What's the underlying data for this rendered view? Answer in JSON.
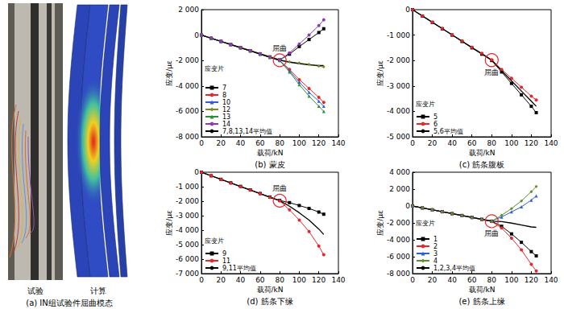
{
  "image_panel": {
    "caption": "(a) IN组试验件屈曲模态",
    "labels": [
      "试验",
      "计算"
    ]
  },
  "chart_data": [
    {
      "type": "line",
      "title": "(b) 蒙皮",
      "x_label": "载荷/kN",
      "y_label": "应变/με",
      "legend": "lower left",
      "legend_title": "应变片",
      "grid": false,
      "x": [
        0,
        10,
        20,
        30,
        40,
        50,
        60,
        70,
        80,
        90,
        100,
        110,
        120,
        125
      ],
      "xlim": [
        0,
        140
      ],
      "xticks": [
        0,
        20,
        40,
        60,
        80,
        100,
        120,
        140
      ],
      "ylim": [
        -8000,
        2000
      ],
      "yticks": [
        {
          "value": -8000,
          "label": "-8 000"
        },
        {
          "value": -6000,
          "label": "-6 000"
        },
        {
          "value": -4000,
          "label": "-4 000"
        },
        {
          "value": -2000,
          "label": "-2 000"
        },
        0,
        {
          "value": 2000,
          "label": "2 000"
        }
      ],
      "annotation": {
        "text": "屈曲",
        "x": 80,
        "y": -1980,
        "color": "#e8262a"
      },
      "series": [
        {
          "name": "7",
          "color": "#000000",
          "marker": "square",
          "values": [
            0,
            -245,
            -490,
            -740,
            -985,
            -1230,
            -1480,
            -1720,
            -1950,
            -1500,
            -900,
            -350,
            200,
            500
          ]
        },
        {
          "name": "8",
          "color": "#e8262a",
          "marker": "circle",
          "values": [
            0,
            -250,
            -500,
            -750,
            -1000,
            -1250,
            -1500,
            -1750,
            -2000,
            -2700,
            -3500,
            -4200,
            -4900,
            -5300
          ]
        },
        {
          "name": "10",
          "color": "#2b5fd9",
          "marker": "triangle",
          "values": [
            0,
            -250,
            -495,
            -745,
            -995,
            -1245,
            -1490,
            -1740,
            -1990,
            -2800,
            -3700,
            -4500,
            -5200,
            -5600
          ]
        },
        {
          "name": "12",
          "color": "#7a8a1e",
          "marker": "diamond",
          "values": [
            0,
            -240,
            -480,
            -720,
            -960,
            -1200,
            -1440,
            -1680,
            -1920,
            -2100,
            -2200,
            -2300,
            -2450,
            -2500
          ]
        },
        {
          "name": "13",
          "color": "#2e8b3a",
          "marker": "triangle",
          "values": [
            0,
            -255,
            -505,
            -760,
            -1010,
            -1260,
            -1510,
            -1760,
            -2010,
            -2900,
            -3900,
            -4800,
            -5600,
            -6000
          ]
        },
        {
          "name": "14",
          "color": "#8a3ab9",
          "marker": "circle",
          "values": [
            0,
            -245,
            -490,
            -735,
            -980,
            -1225,
            -1470,
            -1715,
            -1960,
            -1400,
            -700,
            0,
            750,
            1200
          ]
        },
        {
          "name": "7,8,13,14平均值",
          "color": "#000000",
          "marker": "none",
          "values": [
            0,
            -250,
            -500,
            -745,
            -995,
            -1240,
            -1490,
            -1735,
            -1980,
            -2130,
            -2250,
            -2340,
            -2390,
            -2400
          ]
        }
      ]
    },
    {
      "type": "line",
      "title": "(c) 筋条腹板",
      "x_label": "载荷/kN",
      "y_label": "应变/με",
      "legend": "lower left",
      "legend_title": "应变片",
      "grid": false,
      "x": [
        0,
        10,
        20,
        30,
        40,
        50,
        60,
        70,
        80,
        90,
        100,
        110,
        120,
        125
      ],
      "xlim": [
        0,
        140
      ],
      "xticks": [
        0,
        20,
        40,
        60,
        80,
        100,
        120,
        140
      ],
      "ylim": [
        -5000,
        0
      ],
      "yticks": [
        {
          "value": -5000,
          "label": "-5 000"
        },
        {
          "value": -4000,
          "label": "-4 000"
        },
        {
          "value": -3000,
          "label": "-3 000"
        },
        {
          "value": -2000,
          "label": "-2 000"
        },
        {
          "value": -1000,
          "label": "-1 000"
        },
        0
      ],
      "annotation": {
        "text": "屈曲",
        "x": 80,
        "y": -1985,
        "color": "#e8262a"
      },
      "series": [
        {
          "name": "5",
          "color": "#000000",
          "marker": "square",
          "values": [
            0,
            -250,
            -500,
            -750,
            -1000,
            -1250,
            -1500,
            -1750,
            -2000,
            -2450,
            -2900,
            -3350,
            -3800,
            -4050
          ]
        },
        {
          "name": "6",
          "color": "#e8262a",
          "marker": "circle",
          "values": [
            0,
            -245,
            -490,
            -740,
            -985,
            -1230,
            -1480,
            -1720,
            -1970,
            -2350,
            -2700,
            -3050,
            -3400,
            -3550
          ]
        },
        {
          "name": "5,6平均值",
          "color": "#000000",
          "marker": "none",
          "values": [
            0,
            -250,
            -495,
            -745,
            -990,
            -1240,
            -1490,
            -1735,
            -1985,
            -2400,
            -2800,
            -3200,
            -3600,
            -3800
          ]
        }
      ]
    },
    {
      "type": "line",
      "title": "(d) 筋条下缘",
      "x_label": "载荷/kN",
      "y_label": "应变/με",
      "legend": "lower left",
      "legend_title": "应变片",
      "grid": false,
      "x": [
        0,
        10,
        20,
        30,
        40,
        50,
        60,
        70,
        80,
        90,
        100,
        110,
        120,
        125
      ],
      "xlim": [
        0,
        140
      ],
      "xticks": [
        0,
        20,
        40,
        60,
        80,
        100,
        120,
        140
      ],
      "ylim": [
        -7000,
        0
      ],
      "yticks": [
        {
          "value": -7000,
          "label": "-7 000"
        },
        {
          "value": -6000,
          "label": "-6 000"
        },
        {
          "value": -5000,
          "label": "-5 000"
        },
        {
          "value": -4000,
          "label": "-4 000"
        },
        {
          "value": -3000,
          "label": "-3 000"
        },
        {
          "value": -2000,
          "label": "-2 000"
        },
        {
          "value": -1000,
          "label": "-1 000"
        },
        0
      ],
      "annotation": {
        "text": "屈曲",
        "x": 80,
        "y": -1965,
        "color": "#e8262a"
      },
      "series": [
        {
          "name": "9",
          "color": "#000000",
          "marker": "square",
          "values": [
            0,
            -245,
            -490,
            -735,
            -980,
            -1225,
            -1470,
            -1715,
            -1950,
            -2100,
            -2300,
            -2500,
            -2750,
            -2900
          ]
        },
        {
          "name": "11",
          "color": "#e8262a",
          "marker": "circle",
          "values": [
            0,
            -250,
            -500,
            -745,
            -995,
            -1240,
            -1490,
            -1740,
            -1980,
            -2600,
            -3300,
            -4100,
            -5100,
            -5700
          ]
        },
        {
          "name": "9,11平均值",
          "color": "#000000",
          "marker": "none",
          "values": [
            0,
            -250,
            -495,
            -740,
            -990,
            -1230,
            -1480,
            -1730,
            -1965,
            -2350,
            -2800,
            -3300,
            -3925,
            -4300
          ]
        }
      ]
    },
    {
      "type": "line",
      "title": "(e) 筋条上缘",
      "x_label": "载荷/kN",
      "y_label": "应变/με",
      "legend": "lower left",
      "legend_title": "应变片",
      "grid": false,
      "x": [
        0,
        10,
        20,
        30,
        40,
        50,
        60,
        70,
        80,
        90,
        100,
        110,
        120,
        125
      ],
      "xlim": [
        0,
        140
      ],
      "xticks": [
        0,
        20,
        40,
        60,
        80,
        100,
        120,
        140
      ],
      "ylim": [
        -8000,
        4000
      ],
      "yticks": [
        {
          "value": -8000,
          "label": "-8 000"
        },
        {
          "value": -6000,
          "label": "-6 000"
        },
        {
          "value": -4000,
          "label": "-4 000"
        },
        {
          "value": -2000,
          "label": "-2 000"
        },
        0,
        {
          "value": 2000,
          "label": "2 000"
        },
        {
          "value": 4000,
          "label": "4 000"
        }
      ],
      "annotation": {
        "text": "屈曲",
        "x": 80,
        "y": -1800,
        "color": "#e8262a"
      },
      "series": [
        {
          "name": "1",
          "color": "#000000",
          "marker": "square",
          "values": [
            0,
            -225,
            -450,
            -675,
            -900,
            -1125,
            -1350,
            -1575,
            -1800,
            -2400,
            -3300,
            -4300,
            -5400,
            -5900
          ]
        },
        {
          "name": "2",
          "color": "#e8262a",
          "marker": "circle",
          "values": [
            0,
            -230,
            -460,
            -690,
            -920,
            -1150,
            -1380,
            -1610,
            -1840,
            -2600,
            -3800,
            -5200,
            -6900,
            -7700
          ]
        },
        {
          "name": "3",
          "color": "#2b5fd9",
          "marker": "triangle",
          "values": [
            0,
            -220,
            -440,
            -660,
            -880,
            -1100,
            -1320,
            -1540,
            -1760,
            -1300,
            -700,
            -100,
            700,
            1200
          ]
        },
        {
          "name": "4",
          "color": "#5a8f29",
          "marker": "diamond",
          "values": [
            0,
            -225,
            -450,
            -675,
            -900,
            -1125,
            -1350,
            -1575,
            -1800,
            -1100,
            -300,
            600,
            1700,
            2300
          ]
        },
        {
          "name": "1,2,3,4平均值",
          "color": "#000000",
          "marker": "none",
          "values": [
            0,
            -225,
            -450,
            -675,
            -900,
            -1125,
            -1350,
            -1575,
            -1800,
            -1850,
            -2025,
            -2250,
            -2475,
            -2525
          ]
        }
      ]
    }
  ]
}
